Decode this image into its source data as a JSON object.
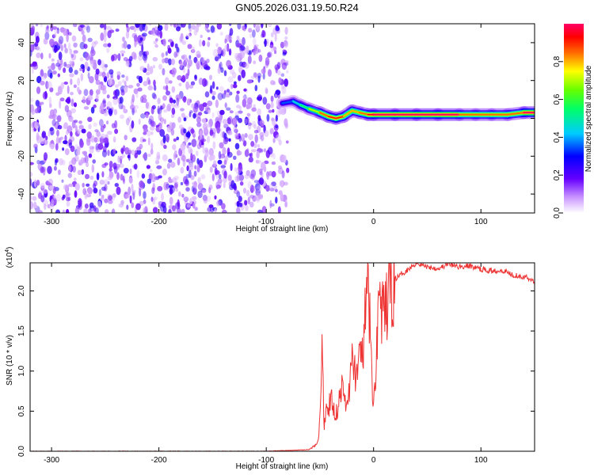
{
  "title": "GN05.2026.031.19.50.R24",
  "chart_data": [
    {
      "type": "heatmap",
      "xlabel": "Height of straight line (km)",
      "ylabel": "Frequency (Hz)",
      "xlim": [
        -320,
        150
      ],
      "ylim": [
        -50,
        50
      ],
      "xticks": [
        -300,
        -200,
        -100,
        0,
        100
      ],
      "yticks": [
        -40,
        -20,
        0,
        20,
        40
      ],
      "colorbar": {
        "label": "Normalized spectral amplitude",
        "range": [
          0,
          1
        ],
        "ticks": [
          "0.0",
          "0.2",
          "0.4",
          "0.6",
          "0.8"
        ]
      },
      "noise_region": {
        "x_range": [
          -320,
          -80
        ],
        "frequency_range": [
          -50,
          50
        ],
        "amplitude": "low (purple/blue)"
      },
      "signal_track": [
        {
          "x": -85,
          "frequency": 8,
          "amplitude": 0.35
        },
        {
          "x": -75,
          "frequency": 9,
          "amplitude": 0.45
        },
        {
          "x": -68,
          "frequency": 7,
          "amplitude": 0.55
        },
        {
          "x": -60,
          "frequency": 5,
          "amplitude": 0.7
        },
        {
          "x": -50,
          "frequency": 3,
          "amplitude": 0.85
        },
        {
          "x": -42,
          "frequency": 1,
          "amplitude": 0.9
        },
        {
          "x": -35,
          "frequency": 0,
          "amplitude": 0.95
        },
        {
          "x": -28,
          "frequency": 1,
          "amplitude": 0.9
        },
        {
          "x": -20,
          "frequency": 4,
          "amplitude": 0.8
        },
        {
          "x": -13,
          "frequency": 3,
          "amplitude": 0.85
        },
        {
          "x": -5,
          "frequency": 2,
          "amplitude": 0.95
        },
        {
          "x": 0,
          "frequency": 2,
          "amplitude": 1.0
        },
        {
          "x": 20,
          "frequency": 2,
          "amplitude": 1.0
        },
        {
          "x": 40,
          "frequency": 2,
          "amplitude": 1.0
        },
        {
          "x": 60,
          "frequency": 2,
          "amplitude": 1.0
        },
        {
          "x": 80,
          "frequency": 2,
          "amplitude": 1.0
        },
        {
          "x": 95,
          "frequency": 2,
          "amplitude": 0.85
        },
        {
          "x": 110,
          "frequency": 2,
          "amplitude": 1.0
        },
        {
          "x": 125,
          "frequency": 2,
          "amplitude": 0.85
        },
        {
          "x": 140,
          "frequency": 3,
          "amplitude": 1.0
        },
        {
          "x": 150,
          "frequency": 3,
          "amplitude": 1.0
        }
      ]
    },
    {
      "type": "line",
      "xlabel": "Height of straight line (km)",
      "ylabel": "SNR (10 * v/v)",
      "y_multiplier": "(x10",
      "y_multiplier_exp": "4",
      "y_multiplier_close": ")",
      "xlim": [
        -320,
        150
      ],
      "ylim": [
        0,
        23500
      ],
      "xticks": [
        -300,
        -200,
        -100,
        0,
        100
      ],
      "yticks": [
        "0.0",
        "0.5",
        "1.0",
        "1.5",
        "2.0"
      ],
      "ytick_values": [
        0,
        5000,
        10000,
        15000,
        20000
      ],
      "color": "#ee3333",
      "series": [
        {
          "x": [
            -320,
            -100,
            -60,
            -52,
            -50,
            -48,
            -46,
            -44,
            -42,
            -40,
            -35,
            -30,
            -25,
            -20,
            -15,
            -10,
            -5,
            0,
            5,
            10,
            15,
            20,
            30,
            40,
            50,
            60,
            70,
            80,
            90,
            100,
            110,
            120,
            130,
            140,
            150
          ],
          "values": [
            0,
            0,
            200,
            1000,
            4000,
            12500,
            2500,
            6500,
            5000,
            7000,
            4500,
            8000,
            5500,
            11000,
            9500,
            13000,
            20500,
            5000,
            19500,
            16000,
            20500,
            21500,
            22500,
            23500,
            23000,
            22800,
            23300,
            23000,
            23100,
            22700,
            22500,
            22600,
            22000,
            21800,
            21200
          ]
        }
      ]
    }
  ]
}
